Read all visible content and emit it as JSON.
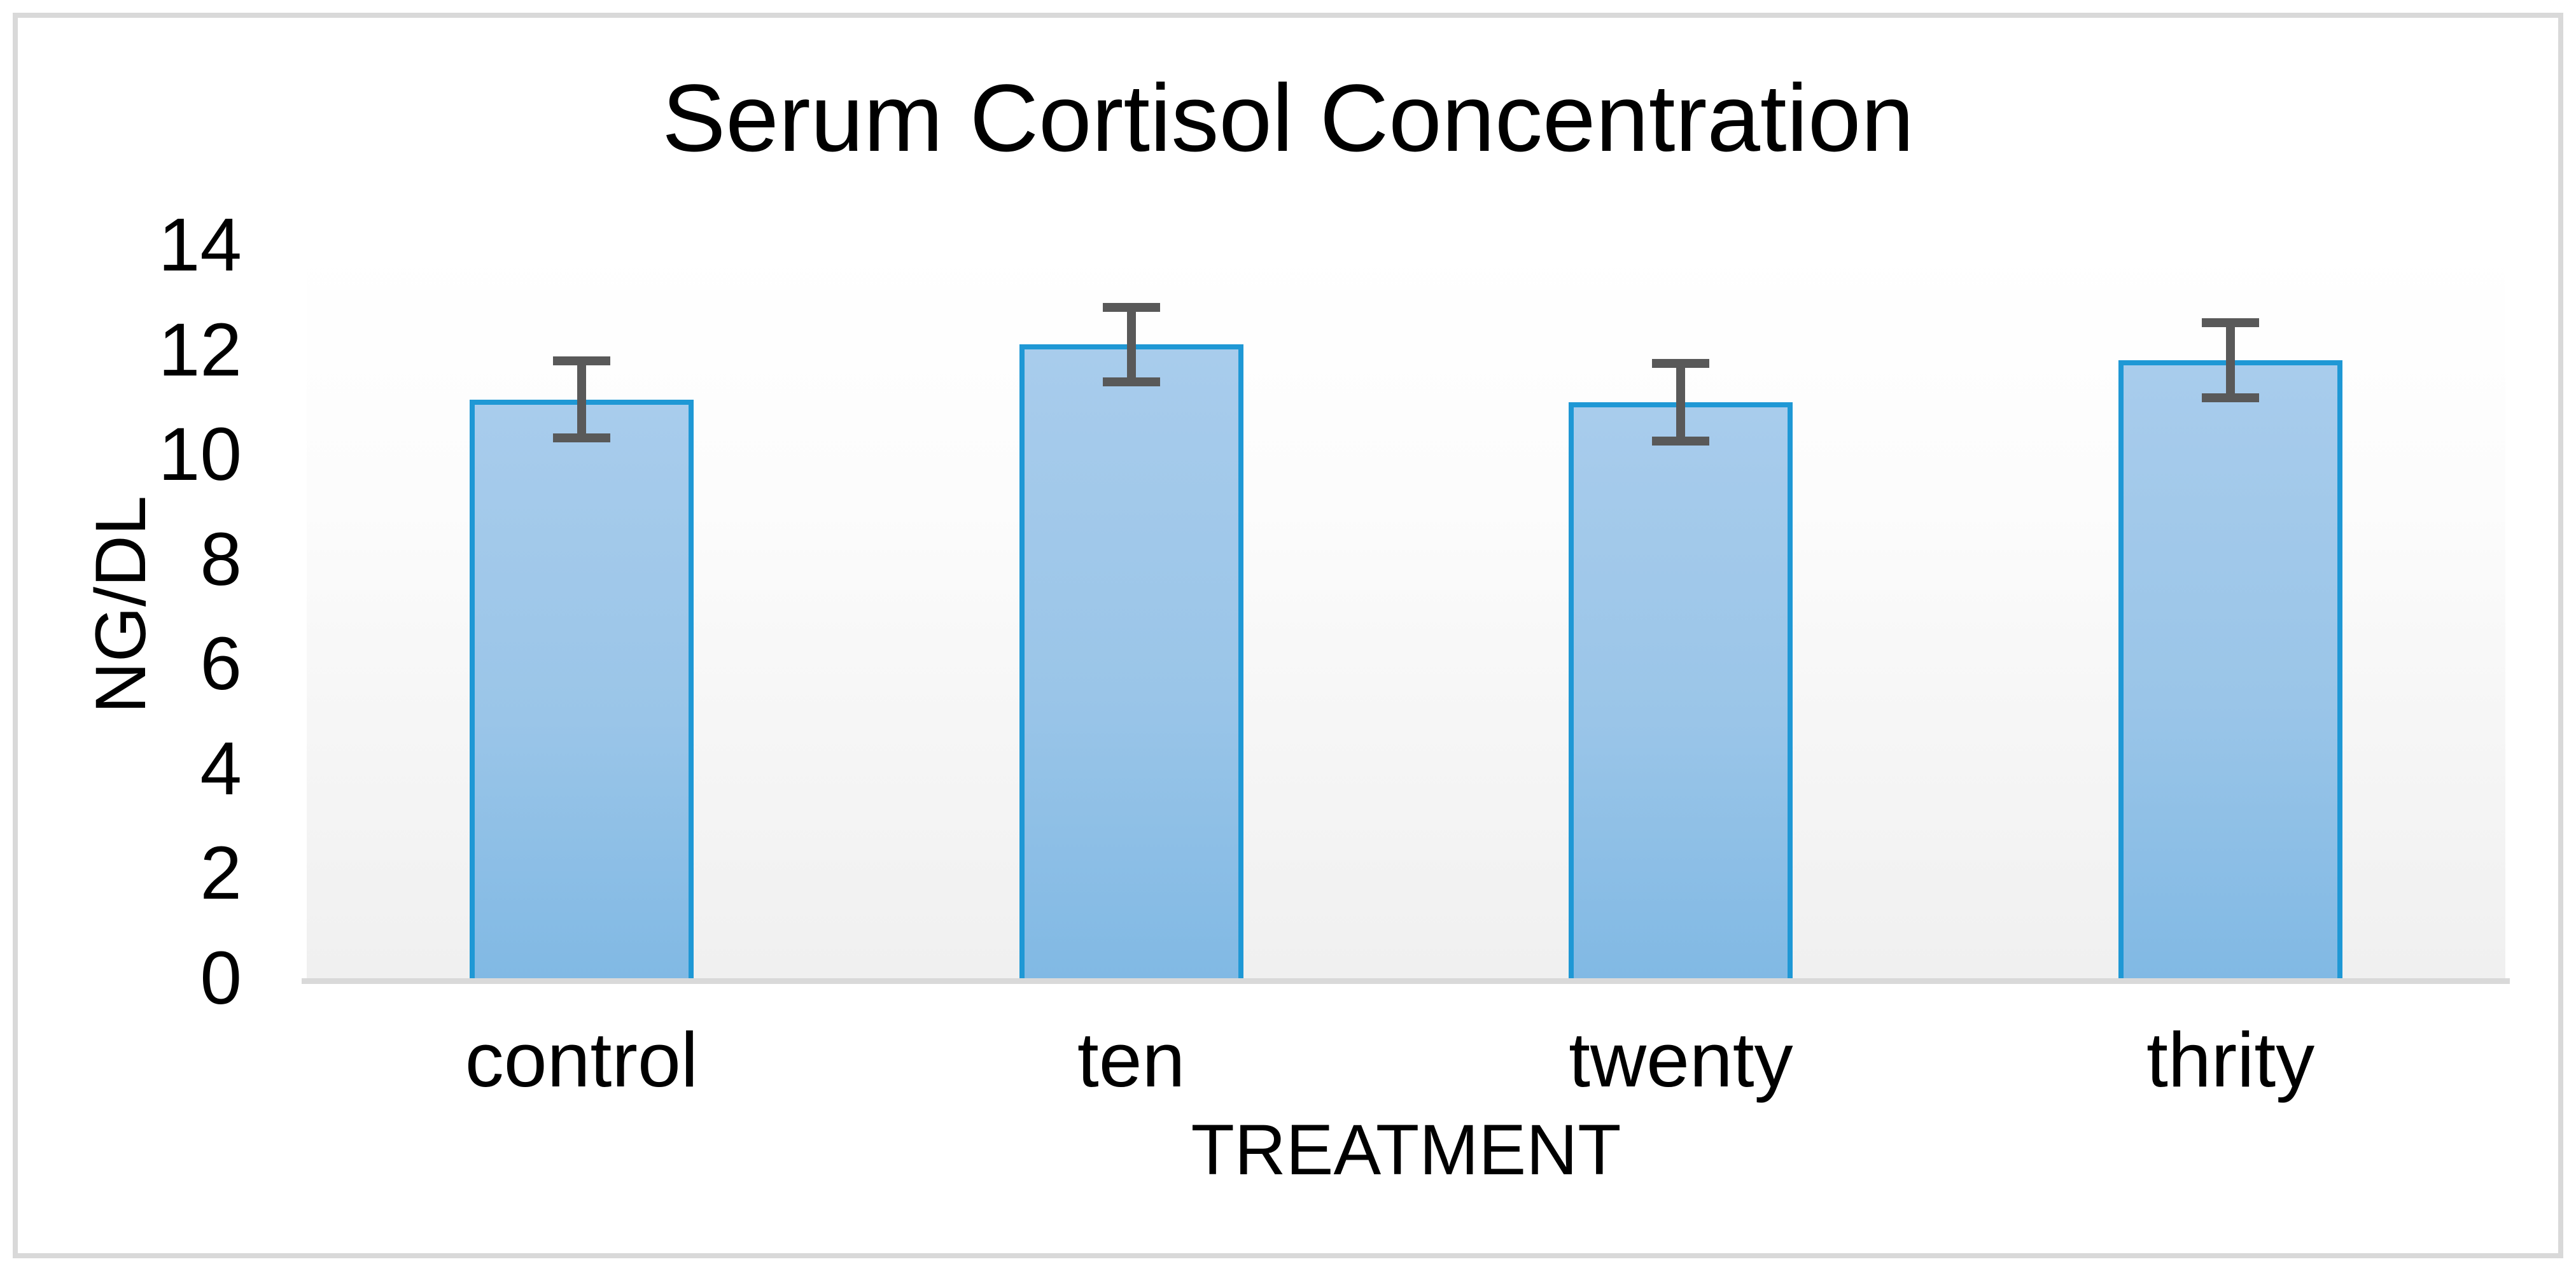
{
  "chart": {
    "title": "Serum Cortisol Concentration",
    "colors": {
      "bar_fill_top": "#A8CCEC",
      "bar_fill_bottom": "#81B9E4",
      "bar_border": "#1F98D5",
      "error_bar": "#595959",
      "axis_line": "#D9D9D9",
      "frame_border": "#D9D9D9",
      "plot_bg_top": "#FFFFFF",
      "plot_bg_bottom": "#F0F0F0",
      "text": "#000000"
    }
  },
  "chart_data": {
    "type": "bar",
    "title": "Serum Cortisol Concentration",
    "xlabel": "TREATMENT",
    "ylabel": "NG/DL",
    "categories": [
      "control",
      "ten",
      "twenty",
      "thrity"
    ],
    "values": [
      11.05,
      12.1,
      11.0,
      11.8
    ],
    "error_bars": [
      0.82,
      0.8,
      0.83,
      0.8
    ],
    "ylim": [
      0,
      14
    ],
    "ytick_interval": 2,
    "ytick_labels": [
      "0",
      "2",
      "4",
      "6",
      "8",
      "10",
      "12",
      "14"
    ],
    "grid": false,
    "legend": "none"
  }
}
